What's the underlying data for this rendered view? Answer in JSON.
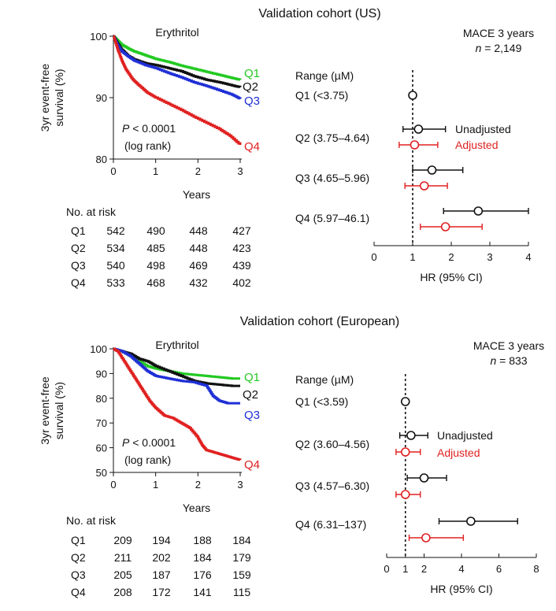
{
  "panels": [
    {
      "cohort_title": "Validation cohort (US)",
      "km": {
        "type": "line",
        "title": "Erythritol",
        "ylabel": [
          "3yr event-free",
          "survival (%)"
        ],
        "xlabel": "Years",
        "ylim": [
          80,
          100
        ],
        "yticks": [
          80,
          90,
          100
        ],
        "xlim": [
          0,
          3
        ],
        "xticks": [
          0,
          1,
          2,
          3
        ],
        "pvalue_label": "P",
        "pvalue_text": " < 0.0001",
        "pvalue_method": "(log rank)",
        "series": [
          {
            "name": "Q1",
            "color": "#22c922",
            "x": [
              0,
              0.1,
              0.2,
              0.35,
              0.5,
              0.75,
              1.0,
              1.3,
              1.6,
              1.9,
              2.2,
              2.5,
              2.8,
              3.0
            ],
            "y": [
              100,
              99.3,
              98.6,
              98.0,
              97.5,
              96.9,
              96.3,
              95.8,
              95.2,
              94.7,
              94.2,
              93.7,
              93.2,
              92.9
            ]
          },
          {
            "name": "Q2",
            "color": "#111111",
            "x": [
              0,
              0.1,
              0.2,
              0.35,
              0.5,
              0.75,
              1.0,
              1.3,
              1.6,
              1.9,
              2.2,
              2.5,
              2.8,
              3.0
            ],
            "y": [
              100,
              98.8,
              97.8,
              96.8,
              96.2,
              95.6,
              95.3,
              94.8,
              94.3,
              93.5,
              92.9,
              92.5,
              92.0,
              91.7
            ]
          },
          {
            "name": "Q3",
            "color": "#1f2fd6",
            "x": [
              0,
              0.1,
              0.2,
              0.35,
              0.5,
              0.75,
              1.0,
              1.3,
              1.6,
              1.9,
              2.2,
              2.5,
              2.8,
              3.0
            ],
            "y": [
              100,
              98.5,
              97.5,
              96.7,
              96.0,
              95.3,
              94.8,
              94.0,
              93.3,
              92.5,
              91.9,
              91.2,
              90.5,
              89.8
            ]
          },
          {
            "name": "Q4",
            "color": "#e02020",
            "x": [
              0,
              0.1,
              0.2,
              0.3,
              0.45,
              0.6,
              0.8,
              1.0,
              1.3,
              1.6,
              1.9,
              2.2,
              2.5,
              2.75,
              3.0
            ],
            "y": [
              100,
              97.8,
              96.0,
              94.5,
              93.0,
              92.0,
              90.8,
              90.0,
              89.0,
              88.0,
              86.9,
              85.9,
              84.9,
              83.8,
              82.3
            ]
          }
        ],
        "risk_table": {
          "title": "No. at risk",
          "rows": [
            {
              "label": "Q1",
              "values": [
                "542",
                "490",
                "448",
                "427"
              ]
            },
            {
              "label": "Q2",
              "values": [
                "534",
                "485",
                "448",
                "423"
              ]
            },
            {
              "label": "Q3",
              "values": [
                "540",
                "498",
                "469",
                "439"
              ]
            },
            {
              "label": "Q4",
              "values": [
                "533",
                "468",
                "432",
                "402"
              ]
            }
          ]
        }
      },
      "forest": {
        "type": "scatter",
        "title": "MACE 3 years",
        "n_label": "n",
        "n_text": " = 2,149",
        "range_header": "Range (µM)",
        "xlabel": "HR (95% CI)",
        "xlim": [
          0,
          4
        ],
        "xticks": [
          0,
          1,
          2,
          3,
          4
        ],
        "reference": 1,
        "legend_unadjusted": "Unadjusted",
        "legend_adjusted": "Adjusted",
        "unadjusted_color": "#111111",
        "adjusted_color": "#e02020",
        "rows": [
          {
            "label": "Q1 (<3.75)",
            "reference": true,
            "hr": 1.0
          },
          {
            "label": "Q2 (3.75–4.64)",
            "unadjusted": [
              1.15,
              0.75,
              1.85
            ],
            "adjusted": [
              1.05,
              0.65,
              1.65
            ]
          },
          {
            "label": "Q3 (4.65–5.96)",
            "unadjusted": [
              1.5,
              1.0,
              2.3
            ],
            "adjusted": [
              1.3,
              0.8,
              1.9
            ]
          },
          {
            "label": "Q4 (5.97–46.1)",
            "unadjusted": [
              2.7,
              1.8,
              4.0
            ],
            "adjusted": [
              1.85,
              1.2,
              2.8
            ]
          }
        ]
      }
    },
    {
      "cohort_title": "Validation cohort (European)",
      "km": {
        "type": "line",
        "title": "Erythritol",
        "ylabel": [
          "3yr event-free",
          "survival (%)"
        ],
        "xlabel": "Years",
        "ylim": [
          50,
          100
        ],
        "yticks": [
          50,
          60,
          70,
          80,
          90,
          100
        ],
        "xlim": [
          0,
          3
        ],
        "xticks": [
          0,
          1,
          2,
          3
        ],
        "pvalue_label": "P",
        "pvalue_text": " < 0.0001",
        "pvalue_method": "(log rank)",
        "series": [
          {
            "name": "Q1",
            "color": "#22c922",
            "x": [
              0,
              0.2,
              0.4,
              0.6,
              0.8,
              1.0,
              1.3,
              1.6,
              1.9,
              2.2,
              2.5,
              2.8,
              3.0
            ],
            "y": [
              100,
              99,
              97,
              95,
              93,
              92,
              91,
              90,
              89.5,
              89,
              88.5,
              88,
              88
            ]
          },
          {
            "name": "Q2",
            "color": "#111111",
            "x": [
              0,
              0.2,
              0.4,
              0.6,
              0.8,
              1.0,
              1.3,
              1.6,
              1.9,
              2.2,
              2.5,
              2.8,
              3.0
            ],
            "y": [
              100,
              99,
              98,
              96,
              95,
              93,
              91,
              89,
              87,
              86,
              85.5,
              85,
              85
            ]
          },
          {
            "name": "Q3",
            "color": "#1f2fd6",
            "x": [
              0,
              0.2,
              0.4,
              0.6,
              0.8,
              1.0,
              1.3,
              1.6,
              1.9,
              2.2,
              2.35,
              2.5,
              2.7,
              3.0
            ],
            "y": [
              100,
              99,
              97,
              94,
              91,
              89,
              88,
              87,
              86.5,
              85,
              81,
              79,
              78,
              78
            ]
          },
          {
            "name": "Q4",
            "color": "#e02020",
            "x": [
              0,
              0.1,
              0.25,
              0.4,
              0.55,
              0.7,
              0.85,
              1.0,
              1.2,
              1.4,
              1.6,
              1.8,
              2.0,
              2.1,
              2.2,
              2.4,
              2.6,
              2.8,
              3.0
            ],
            "y": [
              100,
              99,
              95,
              91,
              87,
              83,
              79,
              76,
              73,
              72,
              70,
              68,
              64,
              61,
              59,
              58,
              57,
              56,
              55
            ]
          }
        ],
        "risk_table": {
          "title": "No. at risk",
          "rows": [
            {
              "label": "Q1",
              "values": [
                "209",
                "194",
                "188",
                "184"
              ]
            },
            {
              "label": "Q2",
              "values": [
                "211",
                "202",
                "184",
                "179"
              ]
            },
            {
              "label": "Q3",
              "values": [
                "205",
                "187",
                "176",
                "159"
              ]
            },
            {
              "label": "Q4",
              "values": [
                "208",
                "172",
                "141",
                "115"
              ]
            }
          ]
        }
      },
      "forest": {
        "type": "scatter",
        "title": "MACE 3 years",
        "n_label": "n",
        "n_text": " = 833",
        "range_header": "Range (µM)",
        "xlabel": "HR (95% CI)",
        "xlim": [
          0,
          8
        ],
        "xticks": [
          0,
          1,
          2,
          4,
          6,
          8
        ],
        "reference": 1,
        "legend_unadjusted": "Unadjusted",
        "legend_adjusted": "Adjusted",
        "unadjusted_color": "#111111",
        "adjusted_color": "#e02020",
        "rows": [
          {
            "label": "Q1 (<3.59)",
            "reference": true,
            "hr": 1.0
          },
          {
            "label": "Q2 (3.60–4.56)",
            "unadjusted": [
              1.3,
              0.7,
              2.2
            ],
            "adjusted": [
              1.0,
              0.5,
              1.8
            ]
          },
          {
            "label": "Q3 (4.57–6.30)",
            "unadjusted": [
              2.0,
              1.1,
              3.2
            ],
            "adjusted": [
              1.0,
              0.5,
              1.8
            ]
          },
          {
            "label": "Q4 (6.31–137)",
            "unadjusted": [
              4.5,
              2.8,
              7.0
            ],
            "adjusted": [
              2.1,
              1.2,
              4.1
            ]
          }
        ]
      }
    }
  ]
}
